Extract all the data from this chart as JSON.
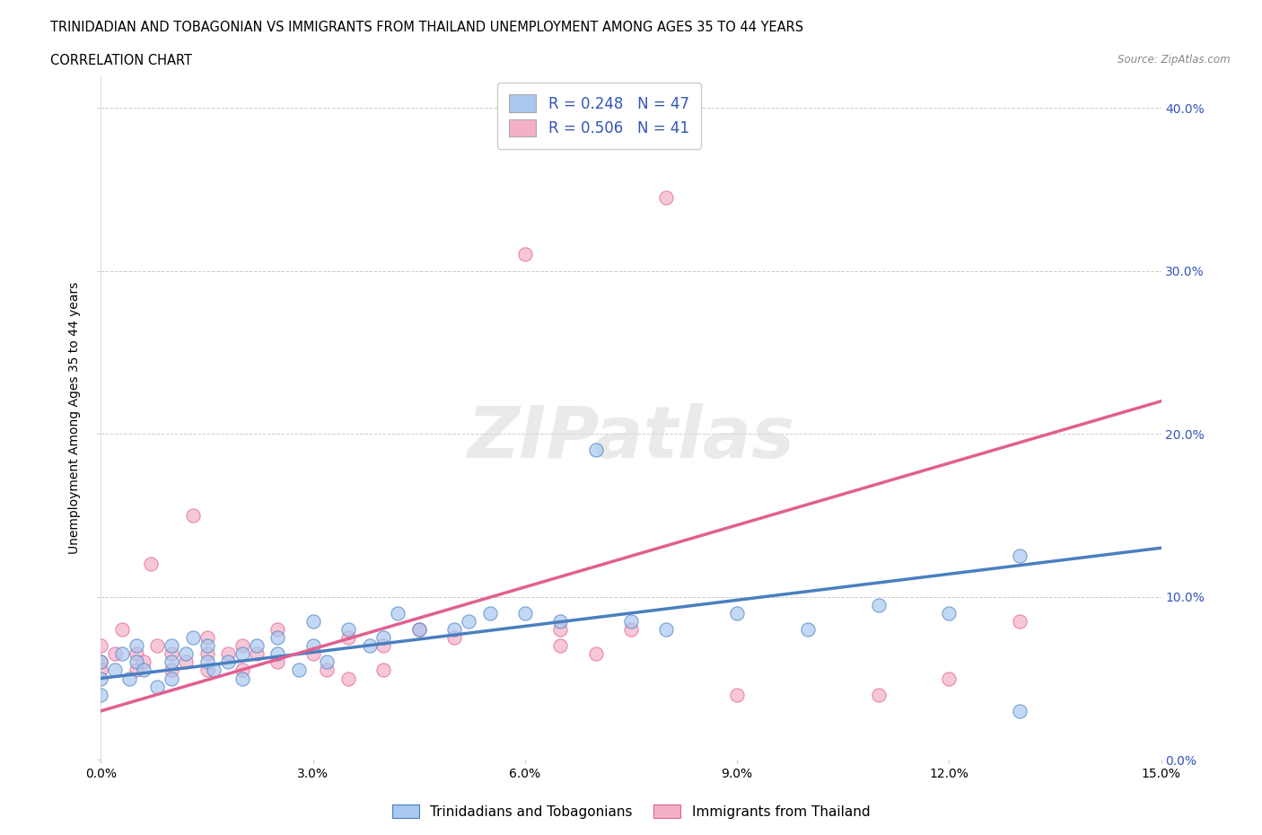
{
  "title_line1": "TRINIDADIAN AND TOBAGONIAN VS IMMIGRANTS FROM THAILAND UNEMPLOYMENT AMONG AGES 35 TO 44 YEARS",
  "title_line2": "CORRELATION CHART",
  "source_text": "Source: ZipAtlas.com",
  "ylabel": "Unemployment Among Ages 35 to 44 years",
  "xlim": [
    0.0,
    0.15
  ],
  "ylim": [
    0.0,
    0.42
  ],
  "xticks": [
    0.0,
    0.03,
    0.06,
    0.09,
    0.12,
    0.15
  ],
  "yticks": [
    0.0,
    0.1,
    0.2,
    0.3,
    0.4
  ],
  "blue_R": 0.248,
  "blue_N": 47,
  "pink_R": 0.506,
  "pink_N": 41,
  "blue_color": "#a8c8f0",
  "pink_color": "#f4b0c8",
  "blue_line_color": "#4a7fc0",
  "pink_line_color": "#e06090",
  "legend_text_color": "#3355bb",
  "right_axis_color": "#3355bb",
  "blue_scatter_x": [
    0.0,
    0.0,
    0.0,
    0.002,
    0.003,
    0.004,
    0.005,
    0.005,
    0.006,
    0.008,
    0.01,
    0.01,
    0.01,
    0.012,
    0.013,
    0.015,
    0.015,
    0.016,
    0.018,
    0.02,
    0.02,
    0.022,
    0.025,
    0.025,
    0.028,
    0.03,
    0.03,
    0.032,
    0.035,
    0.038,
    0.04,
    0.042,
    0.045,
    0.05,
    0.052,
    0.055,
    0.06,
    0.065,
    0.07,
    0.075,
    0.08,
    0.09,
    0.1,
    0.11,
    0.12,
    0.13,
    0.13
  ],
  "blue_scatter_y": [
    0.05,
    0.06,
    0.04,
    0.055,
    0.065,
    0.05,
    0.06,
    0.07,
    0.055,
    0.045,
    0.06,
    0.07,
    0.05,
    0.065,
    0.075,
    0.06,
    0.07,
    0.055,
    0.06,
    0.065,
    0.05,
    0.07,
    0.065,
    0.075,
    0.055,
    0.085,
    0.07,
    0.06,
    0.08,
    0.07,
    0.075,
    0.09,
    0.08,
    0.08,
    0.085,
    0.09,
    0.09,
    0.085,
    0.19,
    0.085,
    0.08,
    0.09,
    0.08,
    0.095,
    0.09,
    0.03,
    0.125
  ],
  "pink_scatter_x": [
    0.0,
    0.0,
    0.0,
    0.002,
    0.003,
    0.005,
    0.005,
    0.006,
    0.007,
    0.008,
    0.01,
    0.01,
    0.012,
    0.013,
    0.015,
    0.015,
    0.015,
    0.018,
    0.02,
    0.02,
    0.022,
    0.025,
    0.025,
    0.03,
    0.032,
    0.035,
    0.035,
    0.04,
    0.04,
    0.045,
    0.05,
    0.06,
    0.065,
    0.065,
    0.07,
    0.075,
    0.08,
    0.09,
    0.11,
    0.12,
    0.13
  ],
  "pink_scatter_y": [
    0.06,
    0.07,
    0.055,
    0.065,
    0.08,
    0.065,
    0.055,
    0.06,
    0.12,
    0.07,
    0.065,
    0.055,
    0.06,
    0.15,
    0.065,
    0.055,
    0.075,
    0.065,
    0.055,
    0.07,
    0.065,
    0.06,
    0.08,
    0.065,
    0.055,
    0.075,
    0.05,
    0.07,
    0.055,
    0.08,
    0.075,
    0.31,
    0.08,
    0.07,
    0.065,
    0.08,
    0.345,
    0.04,
    0.04,
    0.05,
    0.085
  ],
  "blue_trendline_x": [
    0.0,
    0.15
  ],
  "blue_trendline_y": [
    0.05,
    0.13
  ],
  "pink_trendline_x": [
    0.0,
    0.15
  ],
  "pink_trendline_y": [
    0.03,
    0.22
  ],
  "legend_label_blue": "Trinidadians and Tobagonians",
  "legend_label_pink": "Immigrants from Thailand",
  "background_color": "#ffffff",
  "grid_color": "#cccccc"
}
